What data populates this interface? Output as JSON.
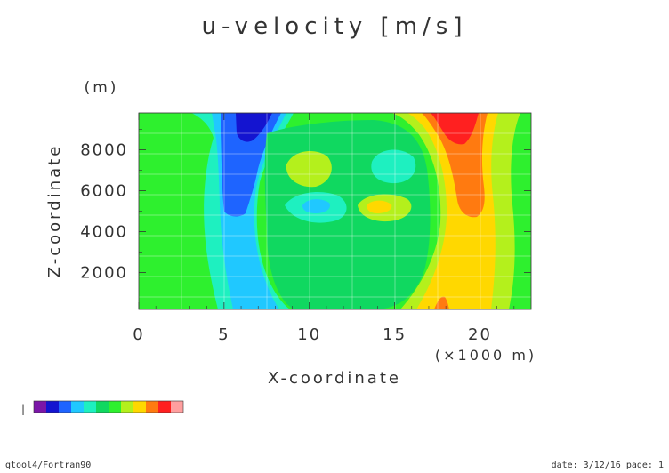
{
  "chart_data": {
    "type": "heatmap",
    "title": "u-velocity [m/s]",
    "xlabel": "X-coordinate",
    "xunit": "(×1000 m)",
    "ylabel": "Z-coordinate",
    "yunit": "(m)",
    "xlim": [
      0,
      23
    ],
    "ylim": [
      200,
      9800
    ],
    "x_ticks": [
      0,
      5,
      10,
      15,
      20
    ],
    "y_ticks": [
      2000,
      4000,
      6000,
      8000
    ],
    "grid": true,
    "colorbar": {
      "colors": [
        "#7b16a8",
        "#1414d0",
        "#1e64ff",
        "#20c8ff",
        "#1ef0c0",
        "#10d860",
        "#2ef02e",
        "#b4f01c",
        "#ffd800",
        "#ff7a10",
        "#ff2020",
        "#ff9f9f"
      ],
      "min_marker": "|",
      "tick_labels": []
    },
    "field_structure": [
      {
        "feature": "negative jet",
        "x_center": 6.5,
        "z_range": [
          4800,
          9800
        ],
        "min_level": "dark blue"
      },
      {
        "feature": "positive jet",
        "x_center": 18.5,
        "z_range": [
          1000,
          9800
        ],
        "max_level": "red"
      },
      {
        "feature": "negative eddy",
        "x": 11,
        "z": 5200,
        "level": "cyan"
      },
      {
        "feature": "positive eddy",
        "x": 14,
        "z": 5200,
        "level": "yellow"
      },
      {
        "feature": "upper left cell",
        "x": 10,
        "z": 7000,
        "level": "yellow-green"
      },
      {
        "feature": "upper right cell",
        "x": 15,
        "z": 7000,
        "level": "teal"
      }
    ]
  },
  "footer": {
    "left": "gtool4/Fortran90",
    "right": "date: 3/12/16 page: 1"
  }
}
